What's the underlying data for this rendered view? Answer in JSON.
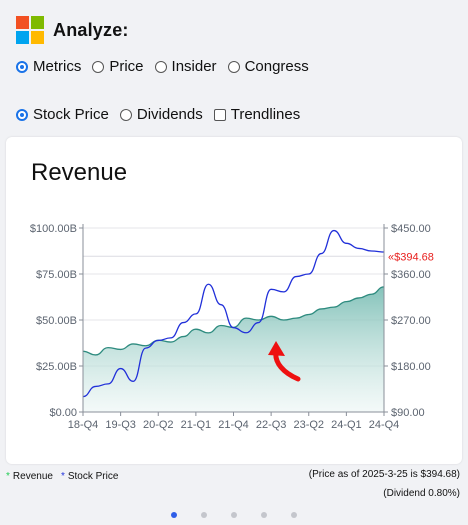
{
  "header": {
    "title": "Analyze:",
    "logo_colors": [
      "#f25022",
      "#7fba00",
      "#00a4ef",
      "#ffb900"
    ]
  },
  "view_options": [
    {
      "label": "Metrics",
      "selected": true
    },
    {
      "label": "Price",
      "selected": false
    },
    {
      "label": "Insider",
      "selected": false
    },
    {
      "label": "Congress",
      "selected": false
    }
  ],
  "overlay_options": {
    "stock_price": {
      "label": "Stock Price",
      "selected": true
    },
    "dividends": {
      "label": "Dividends",
      "selected": false
    },
    "trendlines": {
      "label": "Trendlines",
      "checked": false
    }
  },
  "chart_data": {
    "type": "area",
    "title": "Revenue",
    "x_ticks": [
      "18-Q4",
      "19-Q3",
      "20-Q2",
      "21-Q1",
      "21-Q4",
      "22-Q3",
      "23-Q2",
      "24-Q1",
      "24-Q4"
    ],
    "left_axis": {
      "ticks": [
        "$0.00",
        "$25.00B",
        "$50.00B",
        "$75.00B",
        "$100.00B"
      ],
      "range": [
        0,
        100
      ]
    },
    "right_axis": {
      "ticks": [
        "$90.00",
        "$180.00",
        "$270.00",
        "$360.00",
        "$450.00"
      ],
      "range": [
        90,
        450
      ]
    },
    "price_label": "$394.68",
    "price_value": 394.68,
    "series": [
      {
        "name": "Revenue",
        "color": "#2e8b7f",
        "axis": "left",
        "x": [
          0,
          1,
          2,
          3,
          4,
          5,
          6,
          7,
          8,
          9,
          10,
          11,
          12,
          13,
          14,
          15,
          16,
          17,
          18,
          19,
          20,
          21,
          22,
          23,
          24
        ],
        "values": [
          33,
          31,
          35,
          34,
          37,
          36,
          39,
          38,
          41,
          45,
          43,
          47,
          46,
          51,
          50,
          52,
          50,
          51,
          53,
          56,
          57,
          60,
          62,
          64,
          68
        ]
      },
      {
        "name": "Stock Price",
        "color": "#2130d9",
        "axis": "right",
        "x": [
          0,
          1,
          2,
          3,
          4,
          5,
          6,
          7,
          8,
          9,
          10,
          11,
          12,
          13,
          14,
          15,
          16,
          17,
          18,
          19,
          20,
          21,
          22,
          23,
          24
        ],
        "values": [
          120,
          140,
          145,
          175,
          150,
          215,
          230,
          235,
          265,
          282,
          340,
          300,
          255,
          245,
          265,
          330,
          325,
          355,
          360,
          400,
          445,
          420,
          410,
          405,
          403
        ]
      }
    ],
    "grid": true,
    "legend_position": "bottom-left"
  },
  "legend": [
    {
      "label": "Revenue",
      "color": "#22cc55"
    },
    {
      "label": "Stock Price",
      "color": "#2233dd"
    }
  ],
  "notes": {
    "price_as_of": "(Price as of 2025-3-25 is $394.68)",
    "dividend": "(Dividend 0.80%)"
  },
  "pagination": {
    "count": 5,
    "active": 0
  }
}
